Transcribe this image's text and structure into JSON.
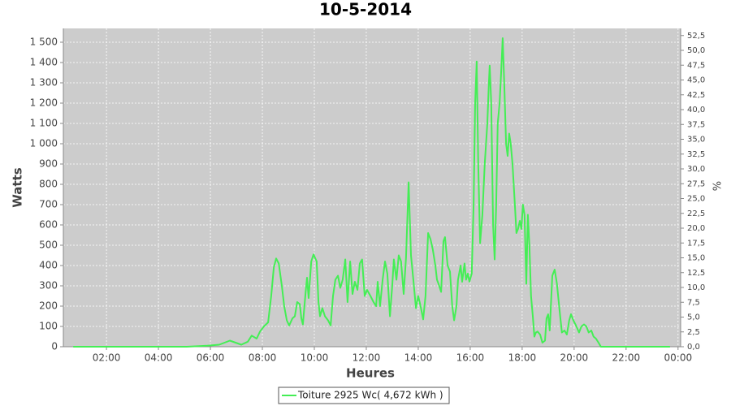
{
  "chart_data": {
    "type": "line",
    "title": "10-5-2014",
    "x_label": "Heures",
    "y_label": "Watts",
    "y2_label": "%",
    "xlim": [
      0.34,
      24.1
    ],
    "xticks": [
      {
        "value": 2,
        "label": "02:00"
      },
      {
        "value": 4,
        "label": "04:00"
      },
      {
        "value": 6,
        "label": "06:00"
      },
      {
        "value": 8,
        "label": "08:00"
      },
      {
        "value": 10,
        "label": "10:00"
      },
      {
        "value": 12,
        "label": "12:00"
      },
      {
        "value": 14,
        "label": "14:00"
      },
      {
        "value": 16,
        "label": "16:00"
      },
      {
        "value": 18,
        "label": "18:00"
      },
      {
        "value": 20,
        "label": "20:00"
      },
      {
        "value": 22,
        "label": "22:00"
      },
      {
        "value": 24,
        "label": "00:00"
      }
    ],
    "ylim": [
      0,
      1568
    ],
    "yticks": [
      0,
      100,
      200,
      300,
      400,
      500,
      600,
      700,
      800,
      900,
      {
        "value": 1000,
        "label": "1 000"
      },
      {
        "value": 1100,
        "label": "1 100"
      },
      {
        "value": 1200,
        "label": "1 200"
      },
      {
        "value": 1300,
        "label": "1 300"
      },
      {
        "value": 1400,
        "label": "1 400"
      },
      {
        "value": 1500,
        "label": "1 500"
      }
    ],
    "y2lim": [
      0,
      53.7
    ],
    "y2ticks": [
      {
        "value": 0,
        "label": "0,0"
      },
      {
        "value": 2.5,
        "label": "2,5"
      },
      {
        "value": 5,
        "label": "5,0"
      },
      {
        "value": 7.5,
        "label": "7,5"
      },
      {
        "value": 10,
        "label": "10,0"
      },
      {
        "value": 12.5,
        "label": "12,5"
      },
      {
        "value": 15,
        "label": "15,0"
      },
      {
        "value": 17.5,
        "label": "17,5"
      },
      {
        "value": 20,
        "label": "20,0"
      },
      {
        "value": 22.5,
        "label": "22,5"
      },
      {
        "value": 25,
        "label": "25,0"
      },
      {
        "value": 27.5,
        "label": "27,5"
      },
      {
        "value": 30,
        "label": "30,0"
      },
      {
        "value": 32.5,
        "label": "32,5"
      },
      {
        "value": 35,
        "label": "35,0"
      },
      {
        "value": 37.5,
        "label": "37,5"
      },
      {
        "value": 40,
        "label": "40,0"
      },
      {
        "value": 42.5,
        "label": "42,5"
      },
      {
        "value": 45,
        "label": "45,0"
      },
      {
        "value": 47.5,
        "label": "47,5"
      },
      {
        "value": 50,
        "label": "50,0"
      },
      {
        "value": 52.5,
        "label": "52,5"
      }
    ],
    "grid": true,
    "legend": "bottom",
    "x": [
      0.72,
      5.09,
      5.88,
      6.34,
      6.75,
      6.97,
      7.19,
      7.44,
      7.59,
      7.78,
      7.91,
      8.06,
      8.22,
      8.34,
      8.44,
      8.53,
      8.63,
      8.75,
      8.84,
      8.94,
      9.03,
      9.16,
      9.25,
      9.34,
      9.44,
      9.5,
      9.56,
      9.66,
      9.72,
      9.78,
      9.88,
      9.97,
      10.09,
      10.16,
      10.22,
      10.31,
      10.41,
      10.53,
      10.63,
      10.72,
      10.81,
      10.91,
      11.0,
      11.09,
      11.19,
      11.28,
      11.38,
      11.47,
      11.56,
      11.66,
      11.75,
      11.84,
      11.94,
      12.03,
      12.16,
      12.28,
      12.38,
      12.44,
      12.53,
      12.63,
      12.72,
      12.81,
      12.91,
      13.0,
      13.06,
      13.16,
      13.25,
      13.34,
      13.44,
      13.53,
      13.63,
      13.72,
      13.81,
      13.91,
      14.0,
      14.09,
      14.19,
      14.28,
      14.38,
      14.47,
      14.56,
      14.66,
      14.72,
      14.78,
      14.88,
      14.97,
      15.03,
      15.13,
      15.22,
      15.31,
      15.38,
      15.47,
      15.53,
      15.63,
      15.69,
      15.78,
      15.84,
      15.91,
      15.97,
      16.06,
      16.13,
      16.19,
      16.25,
      16.31,
      16.38,
      16.47,
      16.56,
      16.66,
      16.72,
      16.75,
      16.81,
      16.88,
      16.94,
      17.0,
      17.06,
      17.13,
      17.19,
      17.25,
      17.31,
      17.38,
      17.44,
      17.5,
      17.56,
      17.63,
      17.72,
      17.78,
      17.84,
      17.91,
      17.97,
      18.03,
      18.09,
      18.16,
      18.22,
      18.28,
      18.34,
      18.41,
      18.47,
      18.53,
      18.59,
      18.69,
      18.78,
      18.88,
      18.94,
      19.0,
      19.06,
      19.16,
      19.25,
      19.34,
      19.44,
      19.53,
      19.63,
      19.72,
      19.81,
      19.88,
      19.97,
      20.09,
      20.19,
      20.28,
      20.38,
      20.47,
      20.56,
      20.66,
      20.75,
      20.84,
      20.94,
      21.03,
      21.34,
      23.69
    ],
    "series": [
      {
        "name": "Toiture 2925 Wc( 4,672 kWh )",
        "color": "#44ee55",
        "values": [
          0,
          0,
          5,
          10,
          30,
          20,
          10,
          25,
          55,
          40,
          75,
          100,
          120,
          250,
          390,
          435,
          410,
          300,
          200,
          130,
          105,
          140,
          150,
          220,
          210,
          140,
          110,
          260,
          340,
          240,
          420,
          455,
          420,
          220,
          150,
          190,
          150,
          130,
          105,
          250,
          330,
          350,
          290,
          330,
          430,
          220,
          420,
          260,
          320,
          280,
          410,
          430,
          250,
          280,
          250,
          220,
          200,
          320,
          200,
          330,
          420,
          360,
          150,
          300,
          430,
          330,
          450,
          420,
          260,
          440,
          810,
          450,
          330,
          190,
          250,
          200,
          135,
          250,
          560,
          530,
          480,
          400,
          330,
          310,
          270,
          520,
          540,
          400,
          370,
          200,
          130,
          200,
          330,
          400,
          320,
          410,
          330,
          360,
          320,
          360,
          700,
          1200,
          1405,
          900,
          510,
          650,
          900,
          1100,
          1300,
          1385,
          1200,
          600,
          430,
          700,
          1100,
          1200,
          1350,
          1520,
          1300,
          1000,
          940,
          1050,
          1000,
          900,
          700,
          560,
          580,
          620,
          580,
          700,
          650,
          310,
          650,
          500,
          250,
          150,
          50,
          70,
          75,
          60,
          20,
          30,
          140,
          160,
          80,
          350,
          380,
          310,
          180,
          70,
          80,
          60,
          130,
          160,
          130,
          100,
          70,
          100,
          110,
          100,
          70,
          80,
          50,
          40,
          20,
          0,
          0,
          0
        ]
      }
    ]
  }
}
